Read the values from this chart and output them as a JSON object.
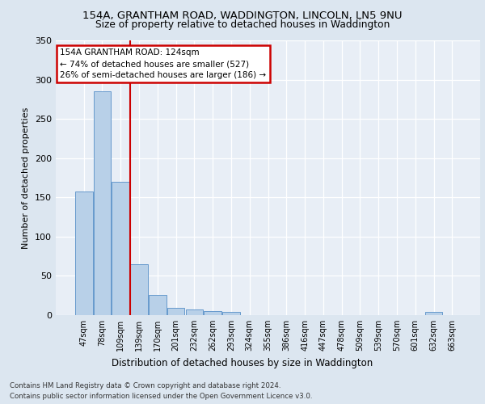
{
  "title1": "154A, GRANTHAM ROAD, WADDINGTON, LINCOLN, LN5 9NU",
  "title2": "Size of property relative to detached houses in Waddington",
  "xlabel": "Distribution of detached houses by size in Waddington",
  "ylabel": "Number of detached properties",
  "bar_color": "#b8d0e8",
  "bar_edge_color": "#6699cc",
  "categories": [
    "47sqm",
    "78sqm",
    "109sqm",
    "139sqm",
    "170sqm",
    "201sqm",
    "232sqm",
    "262sqm",
    "293sqm",
    "324sqm",
    "355sqm",
    "386sqm",
    "416sqm",
    "447sqm",
    "478sqm",
    "509sqm",
    "539sqm",
    "570sqm",
    "601sqm",
    "632sqm",
    "663sqm"
  ],
  "values": [
    157,
    285,
    170,
    65,
    26,
    9,
    7,
    5,
    4,
    0,
    0,
    0,
    0,
    0,
    0,
    0,
    0,
    0,
    0,
    4,
    0
  ],
  "ylim": [
    0,
    350
  ],
  "yticks": [
    0,
    50,
    100,
    150,
    200,
    250,
    300,
    350
  ],
  "red_line_x": 2.5,
  "annotation_title": "154A GRANTHAM ROAD: 124sqm",
  "annotation_line1": "← 74% of detached houses are smaller (527)",
  "annotation_line2": "26% of semi-detached houses are larger (186) →",
  "annotation_box_color": "#ffffff",
  "annotation_box_edge": "#cc0000",
  "red_line_color": "#cc0000",
  "footer1": "Contains HM Land Registry data © Crown copyright and database right 2024.",
  "footer2": "Contains public sector information licensed under the Open Government Licence v3.0.",
  "background_color": "#dce6f0",
  "plot_background": "#e8eef6",
  "grid_color": "#ffffff"
}
